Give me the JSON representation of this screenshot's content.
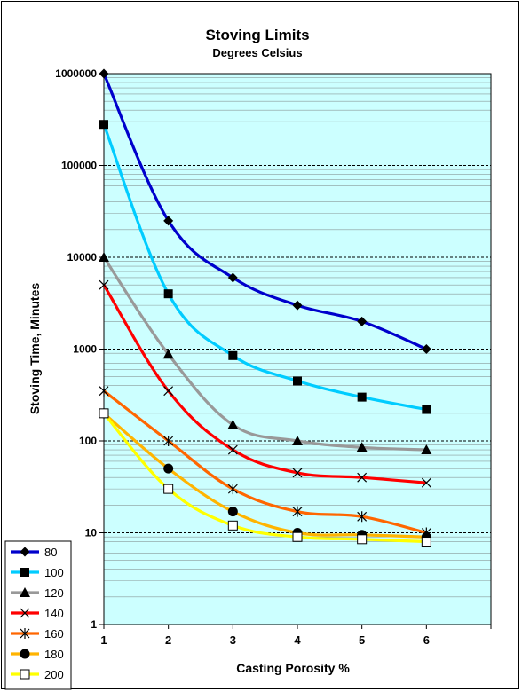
{
  "chart_data": {
    "type": "line",
    "title": "Stoving Limits",
    "subtitle": "Degrees Celsius",
    "xlabel": "Casting Porosity  %",
    "ylabel": "Stoving Time, Minutes",
    "x": [
      1,
      2,
      3,
      4,
      5,
      6
    ],
    "xlim": [
      1,
      7
    ],
    "x_tick_labels": [
      "1",
      "2",
      "3",
      "4",
      "5",
      "6"
    ],
    "y_scale": "log",
    "ylim": [
      1,
      1000000
    ],
    "y_tick_labels": [
      "1",
      "10",
      "100",
      "1000",
      "10000",
      "100000",
      "1000000"
    ],
    "grid": true,
    "plot_background": "#ccffff",
    "legend_position": "bottom-left",
    "series": [
      {
        "name": "80",
        "color": "#0000cc",
        "marker": "diamond",
        "values": [
          1000000,
          25000,
          6000,
          3000,
          2000,
          1000
        ]
      },
      {
        "name": "100",
        "color": "#00ccff",
        "marker": "square",
        "values": [
          280000,
          4000,
          850,
          450,
          300,
          220
        ]
      },
      {
        "name": "120",
        "color": "#999999",
        "marker": "triangle",
        "values": [
          10000,
          880,
          150,
          100,
          85,
          80
        ]
      },
      {
        "name": "140",
        "color": "#ff0000",
        "marker": "x",
        "values": [
          5000,
          350,
          80,
          45,
          40,
          35
        ]
      },
      {
        "name": "160",
        "color": "#ff6600",
        "marker": "asterisk",
        "values": [
          350,
          100,
          30,
          17,
          15,
          10
        ]
      },
      {
        "name": "180",
        "color": "#ffb400",
        "marker": "circle",
        "values": [
          200,
          50,
          17,
          10,
          9.5,
          9
        ]
      },
      {
        "name": "200",
        "color": "#ffff00",
        "marker": "open-square",
        "values": [
          200,
          30,
          12,
          9,
          8.5,
          8
        ]
      }
    ]
  }
}
